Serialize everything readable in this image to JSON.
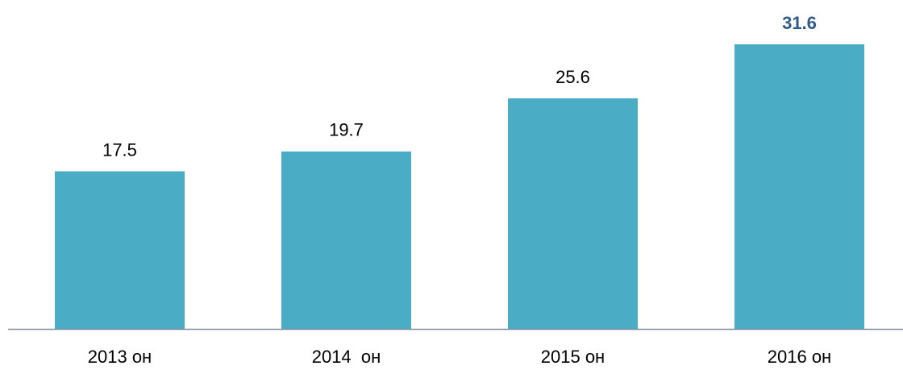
{
  "chart_data": {
    "type": "bar",
    "categories": [
      "2013 он",
      "2014  он",
      "2015 он",
      "2016 он"
    ],
    "values": [
      17.5,
      19.7,
      25.6,
      31.6
    ],
    "color": "#4bacc6",
    "label_colors": [
      "#000000",
      "#000000",
      "#000000",
      "#2e5b8c"
    ],
    "label_bold": [
      false,
      false,
      false,
      true
    ],
    "axis_color": "#7f8c99"
  }
}
